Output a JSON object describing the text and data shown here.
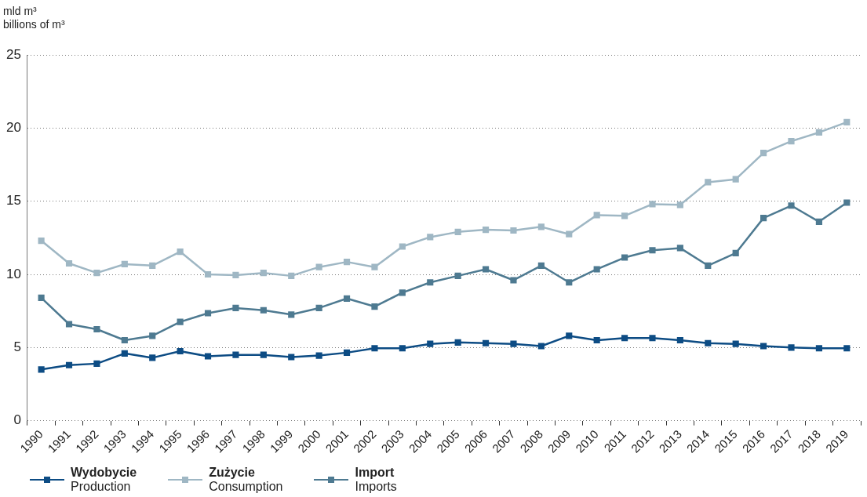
{
  "chart_data": {
    "type": "line",
    "title": "mld m³",
    "subtitle": "billions of m³",
    "categories": [
      "1990",
      "1991",
      "1992",
      "1993",
      "1994",
      "1995",
      "1996",
      "1997",
      "1998",
      "1999",
      "2000",
      "2001",
      "2002",
      "2003",
      "2004",
      "2005",
      "2006",
      "2007",
      "2008",
      "2009",
      "2010",
      "2011",
      "2012",
      "2013",
      "2014",
      "2015",
      "2016",
      "2017",
      "2018",
      "2019"
    ],
    "series": [
      {
        "name": "Wydobycie\nProduction",
        "color": "#0d4c84",
        "values": [
          3.5,
          3.8,
          3.9,
          4.6,
          4.3,
          4.75,
          4.4,
          4.5,
          4.5,
          4.35,
          4.45,
          4.65,
          4.95,
          4.95,
          5.25,
          5.35,
          5.3,
          5.25,
          5.1,
          5.8,
          5.5,
          5.65,
          5.65,
          5.5,
          5.3,
          5.25,
          5.1,
          5.0,
          4.95,
          4.95
        ]
      },
      {
        "name": "Zużycie\nConsumption",
        "color": "#9fb7c4",
        "values": [
          12.3,
          10.75,
          10.1,
          10.7,
          10.6,
          11.55,
          10.0,
          9.95,
          10.1,
          9.9,
          10.5,
          10.85,
          10.5,
          11.9,
          12.55,
          12.9,
          13.05,
          13.0,
          13.25,
          12.75,
          14.05,
          14.0,
          14.8,
          14.75,
          16.3,
          16.5,
          18.3,
          19.1,
          19.7,
          20.4
        ]
      },
      {
        "name": "Import\nImports",
        "color": "#4e7a91",
        "values": [
          8.4,
          6.6,
          6.25,
          5.5,
          5.8,
          6.75,
          7.35,
          7.7,
          7.55,
          7.25,
          7.7,
          8.35,
          7.8,
          8.75,
          9.45,
          9.9,
          10.35,
          9.6,
          10.6,
          9.45,
          10.35,
          11.15,
          11.65,
          11.8,
          10.6,
          11.45,
          13.85,
          14.7,
          13.6,
          14.9
        ]
      }
    ],
    "ylim": [
      0,
      25
    ],
    "yticks": [
      0,
      5,
      10,
      15,
      20,
      25
    ],
    "grid": "y",
    "legend": "bottom left",
    "marker": "square",
    "line_style": "solid"
  }
}
